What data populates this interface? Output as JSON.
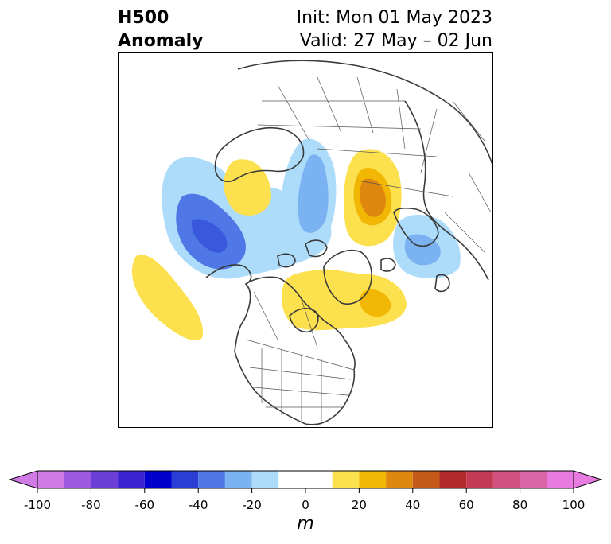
{
  "header": {
    "field_line1": "H500",
    "field_line2": "Anomaly",
    "init_text": "Init: Mon 01 May 2023",
    "valid_text": "Valid: 27 May – 02 Jun"
  },
  "map": {
    "projection": "polar-stereographic",
    "region": "North America / Arctic",
    "coastline_color": "#3a3a3a",
    "border_color": "#555555"
  },
  "colorbar": {
    "unit": "m",
    "extend": "both",
    "levels": [
      -100,
      -90,
      -80,
      -70,
      -60,
      -50,
      -40,
      -30,
      -20,
      -10,
      10,
      20,
      30,
      40,
      50,
      60,
      70,
      80,
      90,
      100
    ],
    "colors": [
      "#d07ae6",
      "#9b59e0",
      "#6b3ed6",
      "#3a22d0",
      "#0000cc",
      "#2a3ed6",
      "#4f78e6",
      "#7ab2f2",
      "#addcfa",
      "#ffffff",
      "#fde04d",
      "#f2b705",
      "#df8810",
      "#c55a18",
      "#b22a2a",
      "#c23a55",
      "#d0507e",
      "#d965a8",
      "#e87be0"
    ],
    "under_color": "#d07ae6",
    "over_color": "#e87be0",
    "tick_values": [
      -100,
      -80,
      -60,
      -40,
      -20,
      0,
      20,
      40,
      60,
      80,
      100
    ],
    "tick_labels": [
      "-100",
      "-80",
      "-60",
      "-40",
      "-20",
      "0",
      "20",
      "40",
      "60",
      "80",
      "100"
    ]
  }
}
